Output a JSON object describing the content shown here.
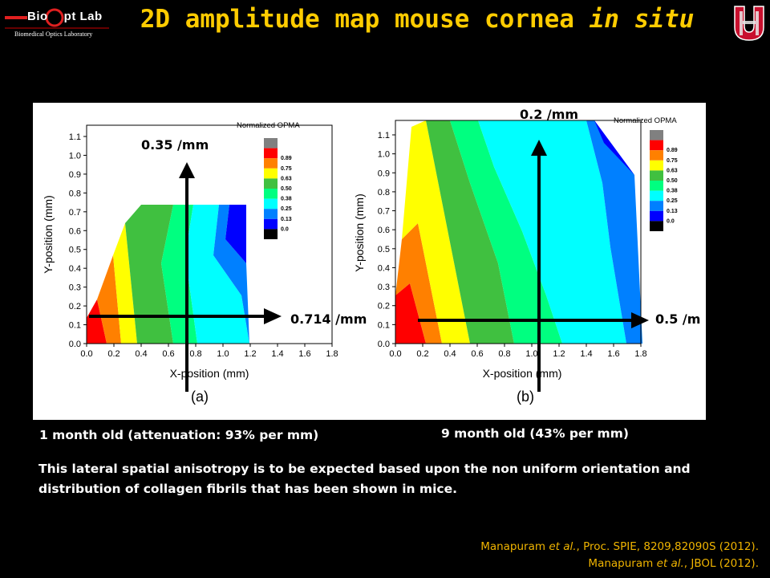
{
  "header": {
    "logo_name": "Bio",
    "logo_name_2": "pt Lab",
    "logo_subtitle": "Biomedical Optics Laboratory",
    "title_main": "2D amplitude map mouse cornea ",
    "title_em": "in situ"
  },
  "colors": {
    "title": "#ffcc00",
    "reference": "#f0b400",
    "background": "#000000"
  },
  "figure": {
    "plot_a": {
      "panel_label": "(a)",
      "xlabel": "X-position (mm)",
      "ylabel": "Y-position (mm)",
      "x_ticks": [
        "0.0",
        "0.2",
        "0.4",
        "0.6",
        "0.8",
        "1.0",
        "1.2",
        "1.4",
        "1.6",
        "1.8"
      ],
      "y_ticks": [
        "0.0",
        "0.1",
        "0.2",
        "0.3",
        "0.4",
        "0.5",
        "0.6",
        "0.7",
        "0.8",
        "0.9",
        "1.0",
        "1.1"
      ],
      "legend_title": "Normalized OPMA",
      "legend_values": [
        "0.89",
        "0.75",
        "0.63",
        "0.50",
        "0.38",
        "0.25",
        "0.13",
        "0.0"
      ],
      "vertical_arrow_label": "0.35 /mm",
      "horizontal_arrow_label": "0.714 /mm"
    },
    "plot_b": {
      "panel_label": "(b)",
      "xlabel": "X-position (mm)",
      "ylabel": "Y-position (mm)",
      "x_ticks": [
        "0.0",
        "0.2",
        "0.4",
        "0.6",
        "0.8",
        "1.0",
        "1.2",
        "1.4",
        "1.6",
        "1.8"
      ],
      "y_ticks": [
        "0.0",
        "0.1",
        "0.2",
        "0.3",
        "0.4",
        "0.5",
        "0.6",
        "0.7",
        "0.8",
        "0.9",
        "1.0",
        "1.1"
      ],
      "legend_title": "Normalized OPMA",
      "legend_values": [
        "0.89",
        "0.75",
        "0.63",
        "0.50",
        "0.38",
        "0.25",
        "0.13",
        "0.0"
      ],
      "vertical_arrow_label": "0.2 /mm",
      "horizontal_arrow_label": "0.5 /m"
    },
    "legend_colors": [
      "#808080",
      "#ff0000",
      "#ff8000",
      "#ffff00",
      "#40c040",
      "#00ff80",
      "#00ffff",
      "#0080ff",
      "#0000ff",
      "#000000"
    ]
  },
  "captions": {
    "left": "1 month old (attenuation: 93% per mm)",
    "right": "9 month old (43% per mm)"
  },
  "body_text": "This lateral spatial anisotropy is to be expected based upon the non uniform orientation and distribution of collagen fibrils that has been shown in mice.",
  "references": {
    "ref1_author": "Manapuram ",
    "ref1_etal": "et al.",
    "ref1_rest": ", Proc. SPIE, 8209,82090S (2012).",
    "ref2_author": "Manapuram ",
    "ref2_etal": "et al.",
    "ref2_rest": ", JBOL (2012)."
  }
}
